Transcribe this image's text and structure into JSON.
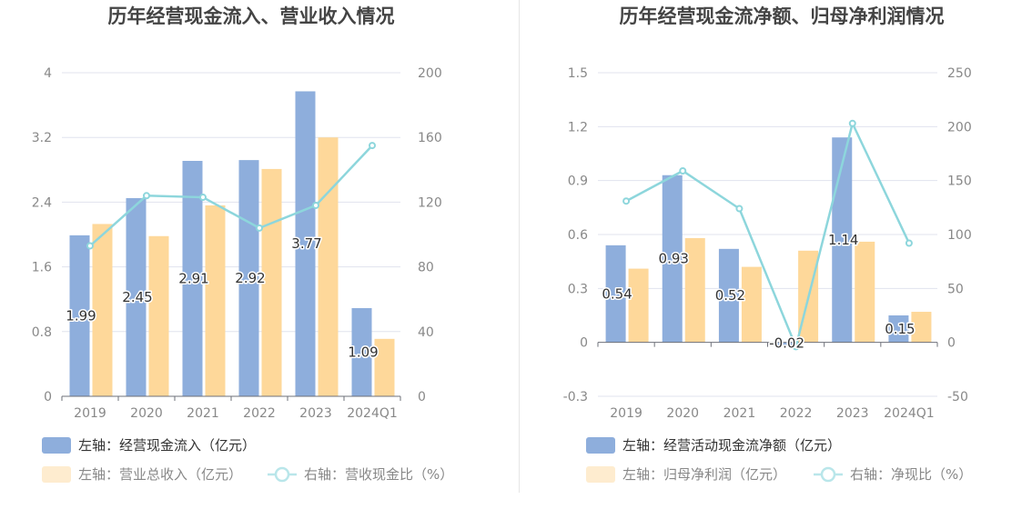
{
  "chart_data": [
    {
      "type": "bar",
      "title": "历年经营现金流入、营业收入情况",
      "categories": [
        "2019",
        "2020",
        "2021",
        "2022",
        "2023",
        "2024Q1"
      ],
      "left_axis": {
        "ylim": [
          0,
          4
        ],
        "ticks": [
          "0",
          "0.8",
          "1.6",
          "2.4",
          "3.2",
          "4"
        ]
      },
      "right_axis": {
        "ylim": [
          0,
          200
        ],
        "ticks": [
          "0",
          "40",
          "80",
          "120",
          "160",
          "200"
        ]
      },
      "series": [
        {
          "name": "左轴：经营现金流入（亿元）",
          "kind": "bar",
          "axis": "left",
          "color": "#8eaedc",
          "values": [
            1.99,
            2.45,
            2.91,
            2.92,
            3.77,
            1.09
          ],
          "labels": [
            "1.99",
            "2.45",
            "2.91",
            "2.92",
            "3.77",
            "1.09"
          ]
        },
        {
          "name": "左轴：营业总收入（亿元）",
          "kind": "bar",
          "axis": "left",
          "color": "#fed89a",
          "values": [
            2.13,
            1.98,
            2.36,
            2.81,
            3.2,
            0.71
          ]
        },
        {
          "name": "右轴：营收现金比（%）",
          "kind": "line",
          "axis": "right",
          "color": "#8dd6dc",
          "values": [
            93,
            124,
            123,
            104,
            118,
            155
          ]
        }
      ],
      "legend": "bottom"
    },
    {
      "type": "bar",
      "title": "历年经营现金流净额、归母净利润情况",
      "categories": [
        "2019",
        "2020",
        "2021",
        "2022",
        "2023",
        "2024Q1"
      ],
      "left_axis": {
        "ylim": [
          -0.3,
          1.5
        ],
        "ticks": [
          "-0.3",
          "0",
          "0.3",
          "0.6",
          "0.9",
          "1.2",
          "1.5"
        ]
      },
      "right_axis": {
        "ylim": [
          -50,
          250
        ],
        "ticks": [
          "-50",
          "0",
          "50",
          "100",
          "150",
          "200",
          "250"
        ]
      },
      "series": [
        {
          "name": "左轴：经营活动现金流净额（亿元）",
          "kind": "bar",
          "axis": "left",
          "color": "#8eaedc",
          "values": [
            0.54,
            0.93,
            0.52,
            -0.02,
            1.14,
            0.15
          ],
          "labels": [
            "0.54",
            "0.93",
            "0.52",
            "-0.02",
            "1.14",
            "0.15"
          ]
        },
        {
          "name": "左轴：归母净利润（亿元）",
          "kind": "bar",
          "axis": "left",
          "color": "#fed89a",
          "values": [
            0.41,
            0.58,
            0.42,
            0.51,
            0.56,
            0.17
          ]
        },
        {
          "name": "右轴：净现比（%）",
          "kind": "line",
          "axis": "right",
          "color": "#8dd6dc",
          "values": [
            131,
            159,
            124,
            -4,
            203,
            92
          ]
        }
      ],
      "legend": "bottom"
    }
  ]
}
